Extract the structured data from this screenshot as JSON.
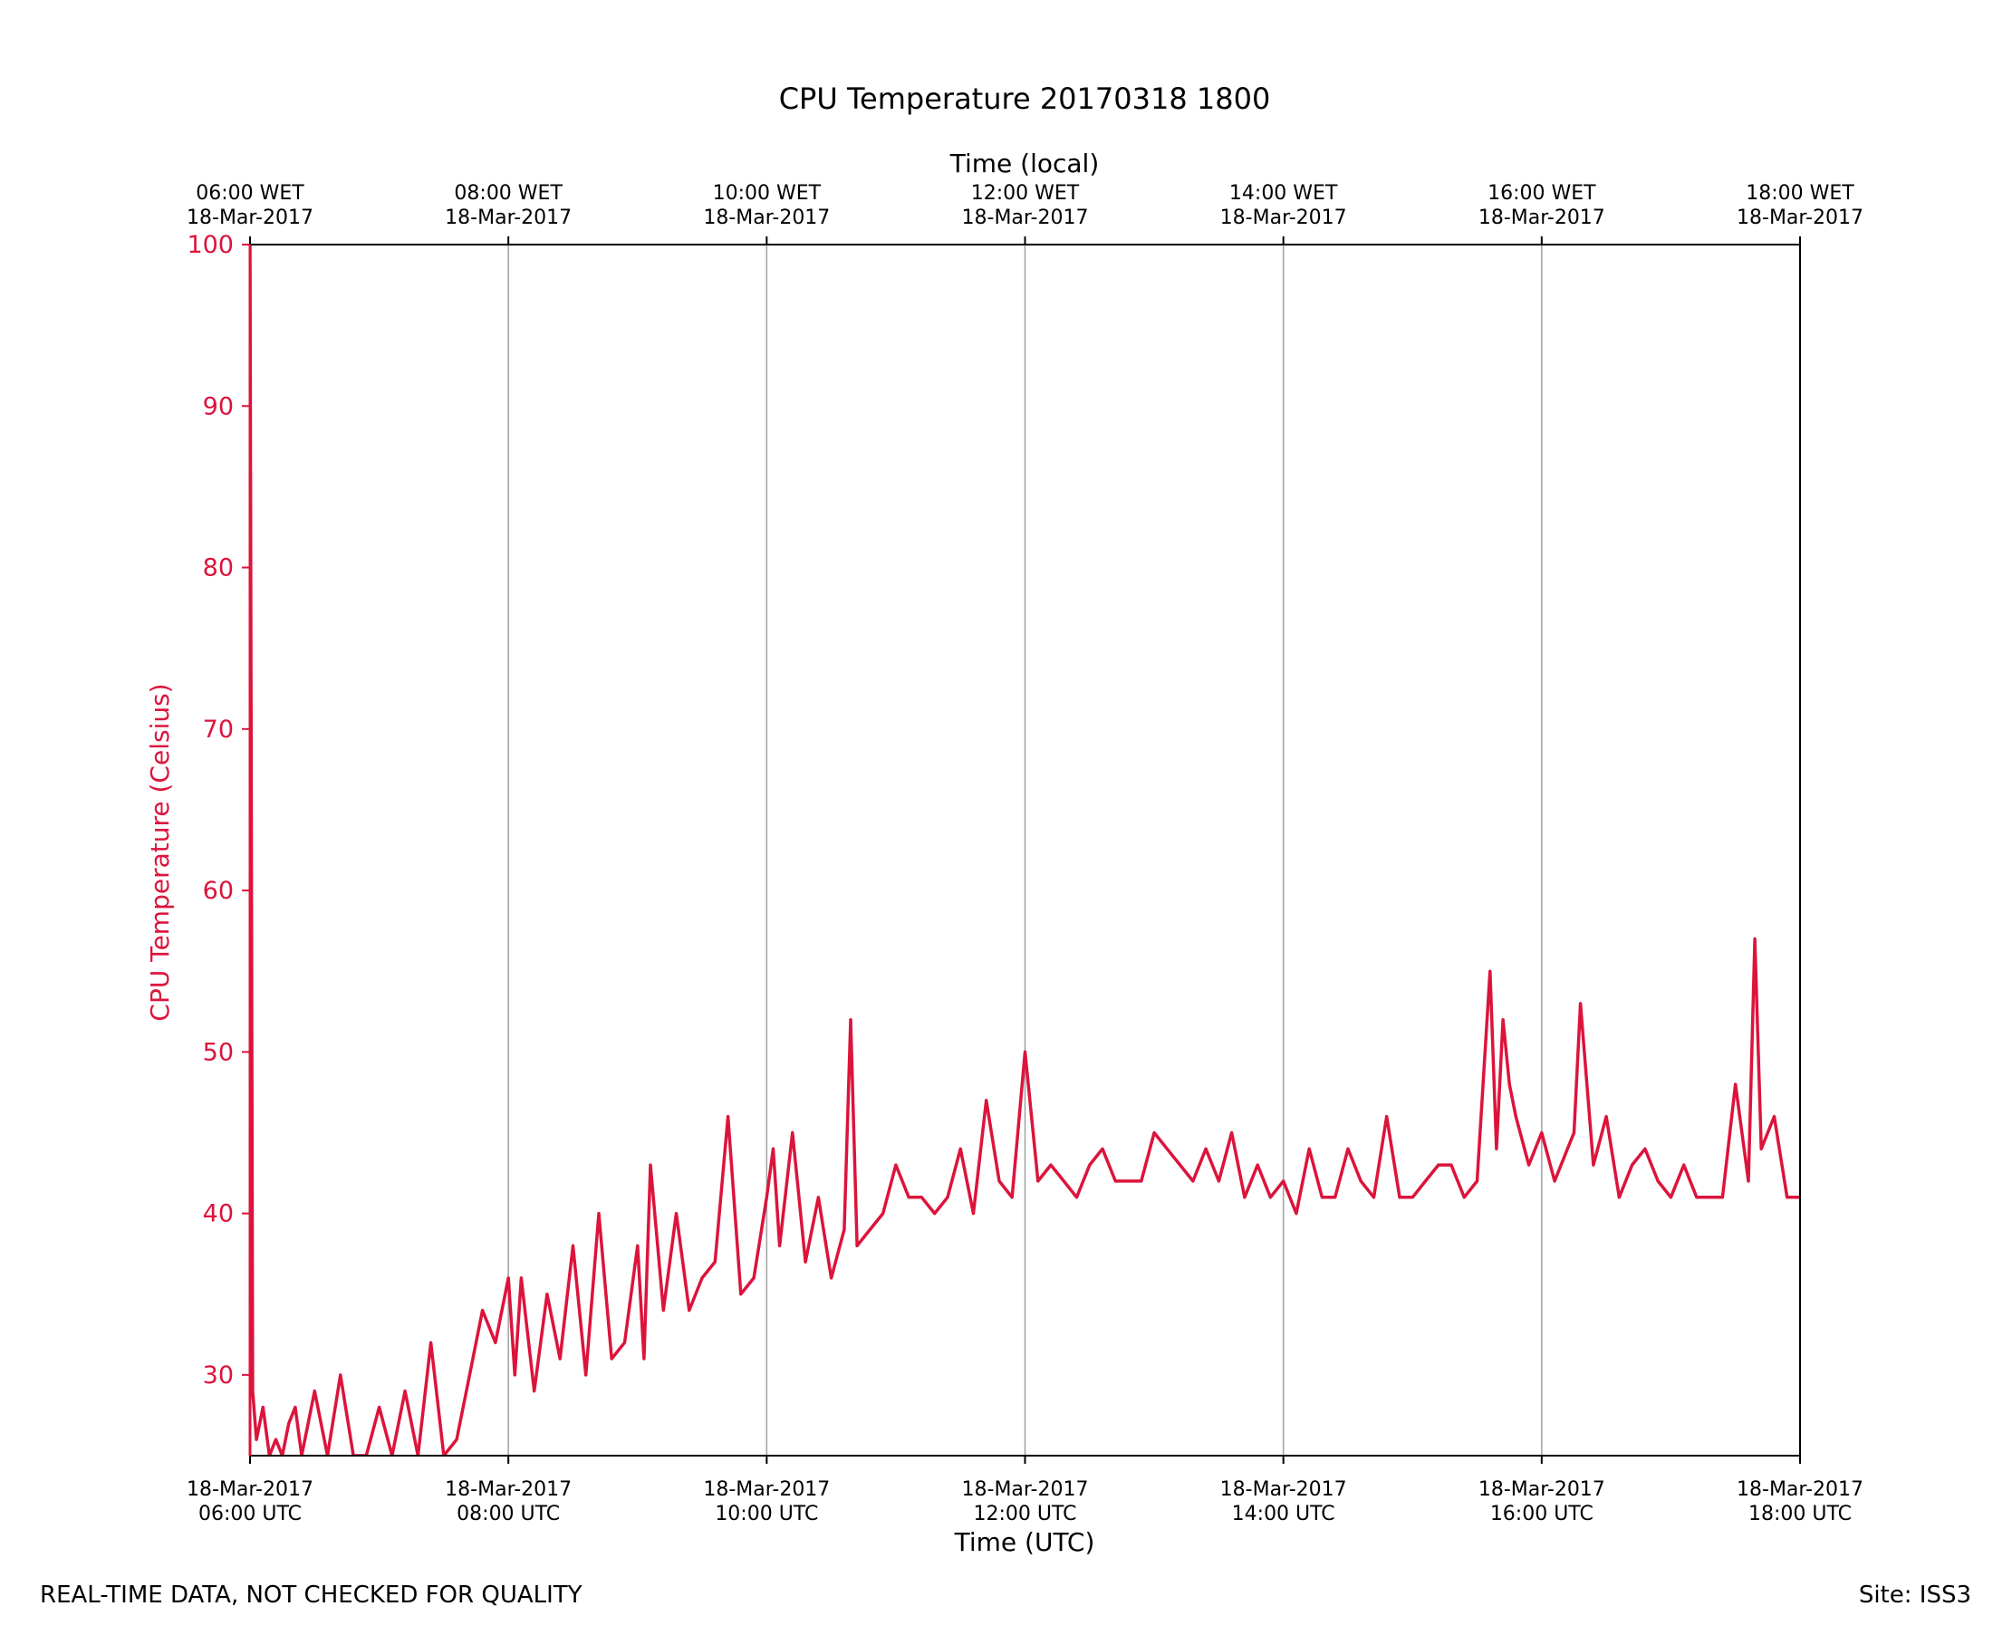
{
  "colors": {
    "series": "#DC143C",
    "axis": "#000000",
    "grid": "#A0A0A0"
  },
  "footer": {
    "quality_note": "REAL-TIME DATA, NOT CHECKED FOR QUALITY",
    "site": "Site: ISS3"
  },
  "chart_data": {
    "type": "line",
    "title": "CPU Temperature 20170318 1800",
    "xlabel": "Time (UTC)",
    "x2label": "Time (local)",
    "ylabel": "CPU Temperature (Celsius)",
    "xlim_hours_utc": [
      6,
      18
    ],
    "ylim": [
      25,
      100
    ],
    "yticks": [
      30,
      40,
      50,
      60,
      70,
      80,
      90,
      100
    ],
    "grid": "vertical",
    "xticks_hours": [
      6,
      8,
      10,
      12,
      14,
      16,
      18
    ],
    "xtick_labels_bottom": [
      [
        "18-Mar-2017",
        "06:00 UTC"
      ],
      [
        "18-Mar-2017",
        "08:00 UTC"
      ],
      [
        "18-Mar-2017",
        "10:00 UTC"
      ],
      [
        "18-Mar-2017",
        "12:00 UTC"
      ],
      [
        "18-Mar-2017",
        "14:00 UTC"
      ],
      [
        "18-Mar-2017",
        "16:00 UTC"
      ],
      [
        "18-Mar-2017",
        "18:00 UTC"
      ]
    ],
    "xtick_labels_top": [
      [
        "06:00 WET",
        "18-Mar-2017"
      ],
      [
        "08:00 WET",
        "18-Mar-2017"
      ],
      [
        "10:00 WET",
        "18-Mar-2017"
      ],
      [
        "12:00 WET",
        "18-Mar-2017"
      ],
      [
        "14:00 WET",
        "18-Mar-2017"
      ],
      [
        "16:00 WET",
        "18-Mar-2017"
      ],
      [
        "18:00 WET",
        "18-Mar-2017"
      ]
    ],
    "series": [
      {
        "name": "CPU Temperature",
        "x_hours_utc": [
          6.0,
          6.02,
          6.05,
          6.1,
          6.15,
          6.2,
          6.25,
          6.3,
          6.35,
          6.4,
          6.5,
          6.6,
          6.7,
          6.8,
          6.9,
          7.0,
          7.1,
          7.2,
          7.3,
          7.4,
          7.5,
          7.6,
          7.7,
          7.8,
          7.9,
          8.0,
          8.05,
          8.1,
          8.2,
          8.3,
          8.4,
          8.5,
          8.6,
          8.7,
          8.8,
          8.9,
          9.0,
          9.05,
          9.1,
          9.2,
          9.3,
          9.4,
          9.5,
          9.6,
          9.7,
          9.8,
          9.9,
          10.0,
          10.05,
          10.1,
          10.2,
          10.3,
          10.4,
          10.5,
          10.6,
          10.65,
          10.7,
          10.8,
          10.9,
          11.0,
          11.1,
          11.2,
          11.3,
          11.4,
          11.5,
          11.6,
          11.7,
          11.8,
          11.9,
          12.0,
          12.1,
          12.2,
          12.3,
          12.4,
          12.5,
          12.6,
          12.7,
          12.8,
          12.9,
          13.0,
          13.1,
          13.2,
          13.3,
          13.4,
          13.5,
          13.6,
          13.7,
          13.8,
          13.9,
          14.0,
          14.1,
          14.2,
          14.3,
          14.4,
          14.5,
          14.6,
          14.7,
          14.8,
          14.9,
          15.0,
          15.1,
          15.2,
          15.3,
          15.4,
          15.5,
          15.6,
          15.65,
          15.7,
          15.75,
          15.8,
          15.9,
          16.0,
          16.1,
          16.2,
          16.25,
          16.3,
          16.4,
          16.5,
          16.6,
          16.7,
          16.8,
          16.9,
          17.0,
          17.1,
          17.2,
          17.3,
          17.4,
          17.5,
          17.6,
          17.65,
          17.7,
          17.8,
          17.9,
          18.0
        ],
        "values": [
          100,
          29,
          26,
          28,
          25,
          26,
          25,
          27,
          28,
          25,
          29,
          25,
          30,
          25,
          25,
          28,
          25,
          29,
          25,
          32,
          25,
          26,
          30,
          34,
          32,
          36,
          30,
          36,
          29,
          35,
          31,
          38,
          30,
          40,
          31,
          32,
          38,
          31,
          43,
          34,
          40,
          34,
          36,
          37,
          46,
          35,
          36,
          41,
          44,
          38,
          45,
          37,
          41,
          36,
          39,
          52,
          38,
          39,
          40,
          43,
          41,
          41,
          40,
          41,
          44,
          40,
          47,
          42,
          41,
          50,
          42,
          43,
          42,
          41,
          43,
          44,
          42,
          42,
          42,
          45,
          44,
          43,
          42,
          44,
          42,
          45,
          41,
          43,
          41,
          42,
          40,
          44,
          41,
          41,
          44,
          42,
          41,
          46,
          41,
          41,
          42,
          43,
          43,
          41,
          42,
          55,
          44,
          52,
          48,
          46,
          43,
          45,
          42,
          44,
          45,
          53,
          43,
          46,
          41,
          43,
          44,
          42,
          41,
          43,
          41,
          41,
          41,
          48,
          42,
          57,
          44,
          46,
          41,
          41
        ]
      }
    ]
  }
}
